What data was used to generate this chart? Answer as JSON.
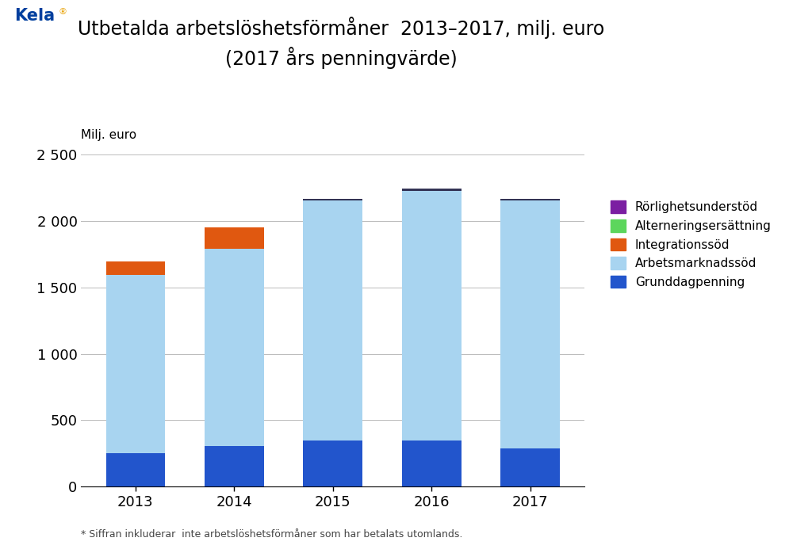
{
  "years": [
    "2013",
    "2014",
    "2015",
    "2016",
    "2017"
  ],
  "grunddagpenning": [
    250,
    305,
    345,
    345,
    285
  ],
  "arbetsmarknadsstod": [
    1345,
    1490,
    1810,
    1885,
    1870
  ],
  "integrationsstod": [
    100,
    160,
    0,
    0,
    0
  ],
  "alterneringsersattning": [
    0,
    0,
    0,
    0,
    0
  ],
  "rorlighetsunderstod": [
    0,
    0,
    0,
    0,
    0
  ],
  "bar_top_dark": [
    0,
    0,
    15,
    15,
    15
  ],
  "color_grunddag": "#2255cc",
  "color_arbmark": "#a8d4f0",
  "color_integ": "#e05810",
  "color_altern": "#5cd65c",
  "color_rorlig": "#7b1fa2",
  "color_bar_top": "#333355",
  "title_line1": "Utbetalda arbetslöshetsförmåner  2013–2017, milj. euro",
  "title_line2": "(2017 års penningvärde)",
  "ylabel": "Milj. euro",
  "ylim": [
    0,
    2500
  ],
  "yticks": [
    0,
    500,
    1000,
    1500,
    2000,
    2500
  ],
  "ytick_labels": [
    "0",
    "500",
    "1 000",
    "1 500",
    "2 000",
    "2 500"
  ],
  "legend_labels": [
    "Rörlighetsunderstöd",
    "Alterneringsersättning",
    "Integrationssöd",
    "Arbetsmarknadssöd",
    "Grunddagpenning"
  ],
  "footnote": "* Siffran inkluderar  inte arbetslöshetsförmåner som har betalats utomlands.",
  "bg_color": "#ffffff",
  "bar_width": 0.6
}
